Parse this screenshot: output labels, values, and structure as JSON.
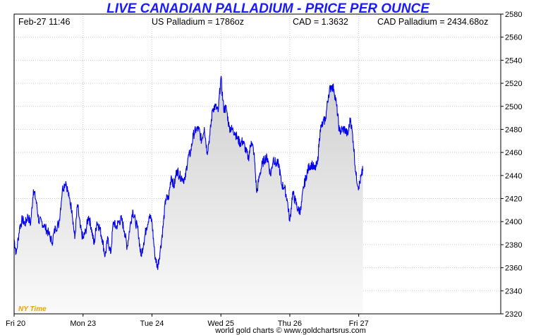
{
  "header": {
    "title": "LIVE CANADIAN PALLADIUM - PRICE PER OUNCE",
    "timestamp": "Feb-27  11:46",
    "us_price": "US Palladium = 1786oz",
    "fx_rate": "CAD = 1.3632",
    "cad_price": "CAD Palladium = 2434.68oz"
  },
  "timezone_label": "NY Time",
  "footer": "world gold charts © www.goldchartsrus.com",
  "colors": {
    "line": "#0000ee",
    "title": "#1a1aff",
    "timezone": "#f0a000",
    "fill_top": "#cfcfcf",
    "fill_bottom": "#fafafa"
  },
  "chart_data": {
    "type": "area",
    "title": "LIVE CANADIAN PALLADIUM - PRICE PER OUNCE",
    "xlabel": "",
    "ylabel": "",
    "ylim": [
      2320,
      2580
    ],
    "yticks": [
      2320,
      2340,
      2360,
      2380,
      2400,
      2420,
      2440,
      2460,
      2480,
      2500,
      2520,
      2540,
      2560,
      2580
    ],
    "xlim": [
      0,
      7.06
    ],
    "xticks": [
      {
        "label": "Fri 20",
        "x": 0
      },
      {
        "label": "Mon 23",
        "x": 1
      },
      {
        "label": "Tue 24",
        "x": 2
      },
      {
        "label": "Wed 25",
        "x": 3
      },
      {
        "label": "Thu 26",
        "x": 4
      },
      {
        "label": "Fri 27",
        "x": 5
      }
    ],
    "grid": true,
    "series": [
      {
        "x": [
          0.0,
          0.03,
          0.08,
          0.12,
          0.16,
          0.2,
          0.24,
          0.28,
          0.32,
          0.36,
          0.4,
          0.45,
          0.5,
          0.55,
          0.6,
          0.65,
          0.7,
          0.75,
          0.8,
          0.84,
          0.88,
          0.92,
          0.96,
          1.0,
          1.04,
          1.08,
          1.12,
          1.16,
          1.2,
          1.24,
          1.28,
          1.32,
          1.36,
          1.4,
          1.44,
          1.48,
          1.52,
          1.56,
          1.6,
          1.64,
          1.68,
          1.72,
          1.76,
          1.8,
          1.84,
          1.88,
          1.92,
          1.96,
          2.0,
          2.04,
          2.08,
          2.12,
          2.16,
          2.2,
          2.24,
          2.28,
          2.32,
          2.36,
          2.4,
          2.44,
          2.48,
          2.52,
          2.56,
          2.6,
          2.64,
          2.68,
          2.72,
          2.76,
          2.8,
          2.84,
          2.88,
          2.92,
          2.96,
          3.0,
          3.04,
          3.08,
          3.12,
          3.16,
          3.2,
          3.24,
          3.28,
          3.32,
          3.36,
          3.4,
          3.44,
          3.48,
          3.52,
          3.56,
          3.6,
          3.64,
          3.68,
          3.72,
          3.76,
          3.8,
          3.84,
          3.88,
          3.92,
          3.96,
          4.0,
          4.04,
          4.08,
          4.12,
          4.16,
          4.2,
          4.24,
          4.28,
          4.32,
          4.36,
          4.4,
          4.44,
          4.48,
          4.52,
          4.56,
          4.6,
          4.64,
          4.68,
          4.72,
          4.76,
          4.8,
          4.84,
          4.88,
          4.92,
          4.96,
          5.0,
          5.04,
          5.06
        ],
        "values": [
          2385,
          2372,
          2395,
          2402,
          2398,
          2405,
          2398,
          2428,
          2418,
          2400,
          2400,
          2395,
          2390,
          2382,
          2395,
          2398,
          2428,
          2435,
          2420,
          2410,
          2385,
          2415,
          2395,
          2385,
          2392,
          2405,
          2395,
          2380,
          2400,
          2395,
          2385,
          2370,
          2385,
          2372,
          2400,
          2395,
          2400,
          2402,
          2392,
          2378,
          2395,
          2410,
          2400,
          2392,
          2370,
          2382,
          2395,
          2405,
          2400,
          2372,
          2360,
          2375,
          2395,
          2420,
          2420,
          2440,
          2430,
          2445,
          2440,
          2438,
          2436,
          2455,
          2460,
          2475,
          2480,
          2480,
          2470,
          2482,
          2460,
          2475,
          2498,
          2500,
          2495,
          2525,
          2498,
          2498,
          2482,
          2480,
          2478,
          2472,
          2468,
          2470,
          2462,
          2455,
          2470,
          2460,
          2425,
          2440,
          2450,
          2455,
          2455,
          2440,
          2455,
          2450,
          2450,
          2432,
          2430,
          2420,
          2400,
          2425,
          2418,
          2410,
          2410,
          2430,
          2440,
          2448,
          2450,
          2445,
          2450,
          2480,
          2485,
          2490,
          2510,
          2518,
          2515,
          2500,
          2478,
          2480,
          2480,
          2475,
          2490,
          2470,
          2440,
          2430,
          2440,
          2445
        ]
      }
    ]
  }
}
